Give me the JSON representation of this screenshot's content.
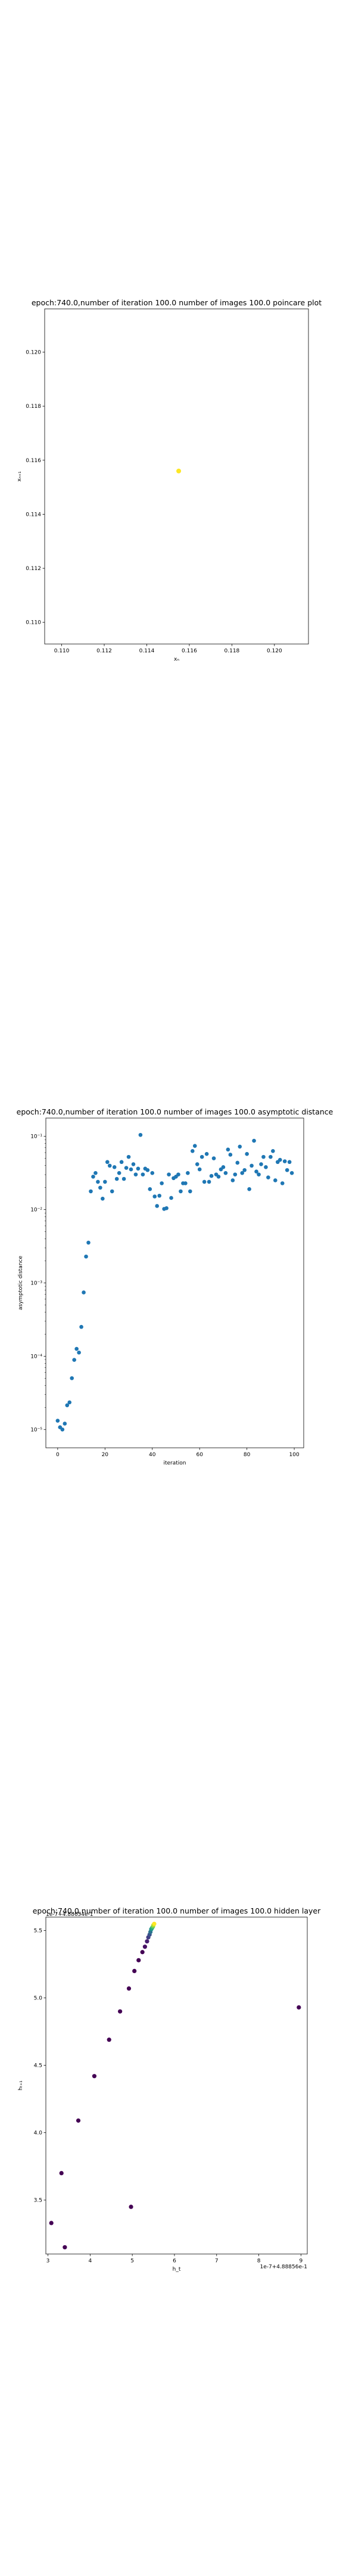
{
  "chart_data": [
    {
      "type": "scatter",
      "title": "epoch:740.0,number of iteration 100.0 number of images 100.0 poincare plot",
      "xlabel": "xₙ",
      "ylabel": "xₙ₊₁",
      "xlim": [
        0.1092,
        0.1216
      ],
      "ylim": [
        0.1092,
        0.1216
      ],
      "xticks": [
        "0.110",
        "0.112",
        "0.114",
        "0.116",
        "0.118",
        "0.120"
      ],
      "yticks": [
        "0.110",
        "0.112",
        "0.114",
        "0.116",
        "0.118",
        "0.120"
      ],
      "points": [
        {
          "x": 0.1155,
          "y": 0.1156,
          "color": "#fde725"
        }
      ]
    },
    {
      "type": "scatter",
      "title": "epoch:740.0,number of iteration 100.0 number of images 100.0 asymptotic distance",
      "xlabel": "iteration",
      "ylabel": "asymptotic distance",
      "xlim": [
        -5,
        104
      ],
      "ylim_log10": [
        -5.25,
        -0.75
      ],
      "yscale": "log",
      "xticks": [
        "0",
        "20",
        "40",
        "60",
        "80",
        "100"
      ],
      "yticks": [
        "10⁻⁵",
        "10⁻⁴",
        "10⁻³",
        "10⁻²",
        "10⁻¹"
      ],
      "color": "#1f77b4",
      "log10_values": [
        -4.88,
        -4.97,
        -5.0,
        -4.92,
        -4.67,
        -4.63,
        -4.3,
        -4.05,
        -3.9,
        -3.95,
        -3.6,
        -3.13,
        -2.64,
        -2.45,
        -1.75,
        -1.55,
        -1.5,
        -1.62,
        -1.7,
        -1.85,
        -1.62,
        -1.35,
        -1.4,
        -1.75,
        -1.42,
        -1.58,
        -1.5,
        -1.35,
        -1.58,
        -1.43,
        -1.28,
        -1.45,
        -1.38,
        -1.52,
        -1.44,
        -0.98,
        -1.52,
        -1.44,
        -1.46,
        -1.72,
        -1.5,
        -1.82,
        -1.95,
        -1.81,
        -1.64,
        -1.99,
        -1.98,
        -1.52,
        -1.84,
        -1.57,
        -1.55,
        -1.52,
        -1.75,
        -1.64,
        -1.64,
        -1.5,
        -1.75,
        -1.2,
        -1.13,
        -1.38,
        -1.45,
        -1.28,
        -1.62,
        -1.24,
        -1.62,
        -1.54,
        -1.3,
        -1.52,
        -1.55,
        -1.45,
        -1.42,
        -1.5,
        -1.18,
        -1.25,
        -1.6,
        -1.52,
        -1.36,
        -1.14,
        -1.5,
        -1.46,
        -1.24,
        -1.72,
        -1.4,
        -1.06,
        -1.48,
        -1.52,
        -1.38,
        -1.28,
        -1.42,
        -1.56,
        -1.28,
        -1.2,
        -1.6,
        -1.35,
        -1.32,
        -1.64,
        -1.34,
        -1.46,
        -1.35,
        -1.5
      ]
    },
    {
      "type": "scatter",
      "title": "epoch:740.0,number of iteration 100.0  number of images 100.0 hidden layer",
      "overlay_text": "1e-7+4.88654e-1",
      "xlabel": "h_t",
      "ylabel": "hₜ₊₁",
      "x_offset_text": "1e-7+4.88856e-1",
      "xlim": [
        2.95,
        9.15
      ],
      "ylim": [
        3.1,
        5.6
      ],
      "xticks": [
        "3",
        "4",
        "5",
        "6",
        "7",
        "8",
        "9"
      ],
      "yticks": [
        "3.5",
        "4.0",
        "4.5",
        "5.0",
        "5.5"
      ],
      "points": [
        {
          "x": 3.08,
          "y": 3.33,
          "color": "#440154"
        },
        {
          "x": 3.4,
          "y": 3.15,
          "color": "#440154"
        },
        {
          "x": 3.32,
          "y": 3.7,
          "color": "#440154"
        },
        {
          "x": 3.72,
          "y": 4.09,
          "color": "#440154"
        },
        {
          "x": 4.1,
          "y": 4.42,
          "color": "#440154"
        },
        {
          "x": 4.45,
          "y": 4.69,
          "color": "#440154"
        },
        {
          "x": 4.71,
          "y": 4.9,
          "color": "#440154"
        },
        {
          "x": 4.92,
          "y": 5.07,
          "color": "#440154"
        },
        {
          "x": 5.05,
          "y": 5.2,
          "color": "#440154"
        },
        {
          "x": 5.15,
          "y": 5.28,
          "color": "#440154"
        },
        {
          "x": 5.24,
          "y": 5.34,
          "color": "#440154"
        },
        {
          "x": 5.3,
          "y": 5.38,
          "color": "#471164"
        },
        {
          "x": 5.35,
          "y": 5.42,
          "color": "#482071"
        },
        {
          "x": 5.38,
          "y": 5.45,
          "color": "#433e85"
        },
        {
          "x": 5.41,
          "y": 5.47,
          "color": "#3b528b"
        },
        {
          "x": 5.43,
          "y": 5.49,
          "color": "#2c728e"
        },
        {
          "x": 5.45,
          "y": 5.51,
          "color": "#21918c"
        },
        {
          "x": 5.47,
          "y": 5.52,
          "color": "#28ae80"
        },
        {
          "x": 5.49,
          "y": 5.53,
          "color": "#5ec962"
        },
        {
          "x": 5.5,
          "y": 5.54,
          "color": "#addc30"
        },
        {
          "x": 5.52,
          "y": 5.55,
          "color": "#fde725"
        },
        {
          "x": 4.97,
          "y": 3.45,
          "color": "#440154"
        },
        {
          "x": 8.95,
          "y": 4.93,
          "color": "#440154"
        }
      ]
    }
  ]
}
